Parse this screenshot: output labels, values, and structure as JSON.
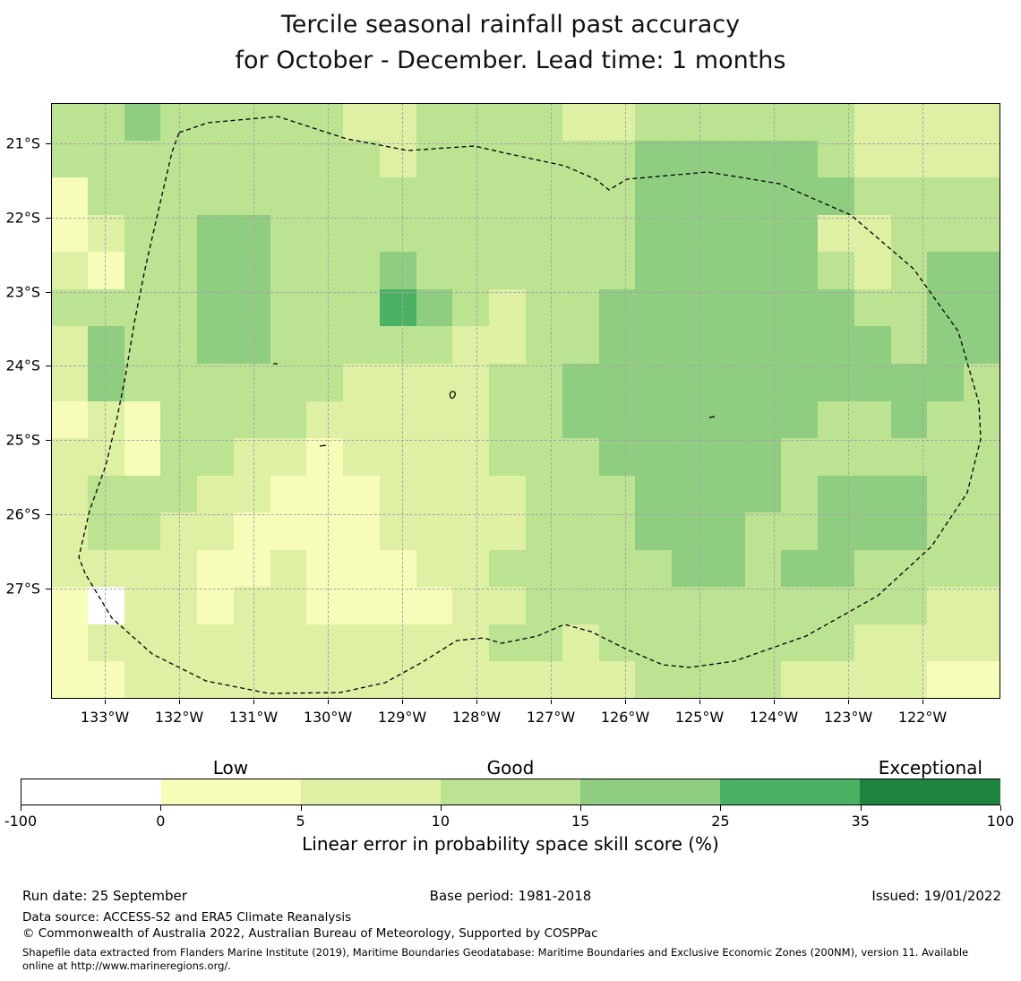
{
  "title": {
    "line1": "Tercile seasonal rainfall past accuracy",
    "line2": "for October - December. Lead time: 1 months"
  },
  "chart_data": {
    "type": "heatmap",
    "title": "Tercile seasonal rainfall past accuracy for October - December. Lead time: 1 months",
    "x_tick_labels": [
      "133°W",
      "132°W",
      "131°W",
      "130°W",
      "129°W",
      "128°W",
      "127°W",
      "126°W",
      "125°W",
      "124°W",
      "123°W",
      "122°W"
    ],
    "y_tick_labels": [
      "21°S",
      "22°S",
      "23°S",
      "24°S",
      "25°S",
      "26°S",
      "27°S"
    ],
    "colorbar": {
      "category_labels": [
        "Low",
        "Good",
        "Exceptional"
      ],
      "tick_labels": [
        "-100",
        "0",
        "5",
        "10",
        "15",
        "25",
        "35",
        "100"
      ],
      "bin_edges": [
        -100,
        0,
        5,
        10,
        15,
        25,
        35,
        100
      ],
      "colors": [
        "#ffffff",
        "#f7fcb9",
        "#ddf0a4",
        "#bce392",
        "#8fce80",
        "#4bb263",
        "#1d8540"
      ],
      "axis_label": "Linear error in probability space skill score (%)"
    },
    "grid_color_bins": [
      [
        3,
        3,
        4,
        3,
        3,
        3,
        3,
        3,
        2,
        2,
        3,
        3,
        3,
        3,
        2,
        2,
        3,
        3,
        3,
        3,
        3,
        3,
        2,
        2,
        2,
        2
      ],
      [
        3,
        3,
        3,
        3,
        3,
        3,
        3,
        3,
        3,
        2,
        3,
        3,
        3,
        3,
        3,
        3,
        4,
        4,
        4,
        4,
        4,
        3,
        2,
        2,
        2,
        2
      ],
      [
        1,
        3,
        3,
        3,
        3,
        3,
        3,
        3,
        3,
        3,
        3,
        3,
        3,
        3,
        3,
        3,
        4,
        4,
        4,
        4,
        4,
        4,
        3,
        3,
        3,
        3
      ],
      [
        1,
        2,
        3,
        3,
        4,
        4,
        3,
        3,
        3,
        3,
        3,
        3,
        3,
        3,
        3,
        3,
        4,
        4,
        4,
        4,
        4,
        2,
        2,
        3,
        3,
        3
      ],
      [
        2,
        1,
        3,
        3,
        4,
        4,
        3,
        3,
        3,
        4,
        3,
        3,
        3,
        3,
        3,
        3,
        4,
        4,
        4,
        4,
        4,
        3,
        2,
        3,
        4,
        4
      ],
      [
        3,
        3,
        3,
        3,
        4,
        4,
        3,
        3,
        3,
        5,
        4,
        3,
        2,
        3,
        3,
        4,
        4,
        4,
        4,
        4,
        4,
        4,
        3,
        3,
        4,
        4
      ],
      [
        2,
        4,
        3,
        3,
        4,
        4,
        3,
        3,
        3,
        3,
        3,
        2,
        2,
        3,
        3,
        4,
        4,
        4,
        4,
        4,
        4,
        4,
        4,
        3,
        4,
        4
      ],
      [
        2,
        4,
        3,
        3,
        3,
        3,
        3,
        3,
        2,
        2,
        2,
        2,
        3,
        3,
        4,
        4,
        4,
        4,
        4,
        4,
        4,
        4,
        4,
        4,
        4,
        3
      ],
      [
        1,
        2,
        1,
        3,
        3,
        3,
        3,
        2,
        2,
        2,
        2,
        2,
        3,
        3,
        4,
        4,
        4,
        4,
        4,
        4,
        4,
        3,
        3,
        4,
        3,
        3
      ],
      [
        2,
        2,
        1,
        3,
        3,
        2,
        2,
        1,
        2,
        2,
        2,
        2,
        3,
        3,
        3,
        4,
        4,
        4,
        4,
        4,
        3,
        3,
        3,
        3,
        3,
        3
      ],
      [
        2,
        3,
        3,
        3,
        2,
        2,
        1,
        1,
        1,
        2,
        2,
        2,
        2,
        3,
        3,
        3,
        4,
        4,
        4,
        4,
        3,
        4,
        4,
        4,
        3,
        3
      ],
      [
        2,
        3,
        3,
        2,
        2,
        1,
        1,
        1,
        1,
        2,
        2,
        2,
        2,
        3,
        3,
        3,
        4,
        4,
        4,
        3,
        3,
        4,
        4,
        4,
        3,
        3
      ],
      [
        2,
        2,
        2,
        2,
        1,
        1,
        2,
        1,
        1,
        1,
        2,
        2,
        3,
        3,
        3,
        3,
        3,
        4,
        4,
        3,
        4,
        4,
        3,
        3,
        3,
        3
      ],
      [
        1,
        0,
        2,
        2,
        1,
        2,
        2,
        1,
        1,
        1,
        1,
        2,
        2,
        3,
        3,
        3,
        3,
        3,
        3,
        3,
        3,
        3,
        3,
        3,
        2,
        2
      ],
      [
        1,
        2,
        2,
        2,
        2,
        2,
        2,
        2,
        2,
        2,
        2,
        2,
        3,
        3,
        2,
        3,
        3,
        3,
        3,
        3,
        3,
        3,
        2,
        2,
        2,
        2
      ],
      [
        1,
        1,
        2,
        2,
        2,
        2,
        2,
        2,
        2,
        2,
        2,
        2,
        2,
        2,
        2,
        2,
        3,
        3,
        3,
        3,
        2,
        2,
        2,
        2,
        1,
        1
      ]
    ]
  },
  "footer": {
    "run_date": "Run date: 25 September",
    "base_period": "Base period: 1981-2018",
    "issued": "Issued: 19/01/2022",
    "data_source": "Data source: ACCESS-S2 and ERA5 Climate Reanalysis",
    "copyright": "© Commonwealth of Australia 2022, Australian Bureau of Meteorology, Supported by COSPPac",
    "shapefile_note": "Shapefile data extracted from Flanders Marine Institute (2019), Maritime Boundaries Geodatabase: Maritime Boundaries and Exclusive Economic Zones (200NM), version 11. Available online at http://www.marineregions.org/."
  }
}
